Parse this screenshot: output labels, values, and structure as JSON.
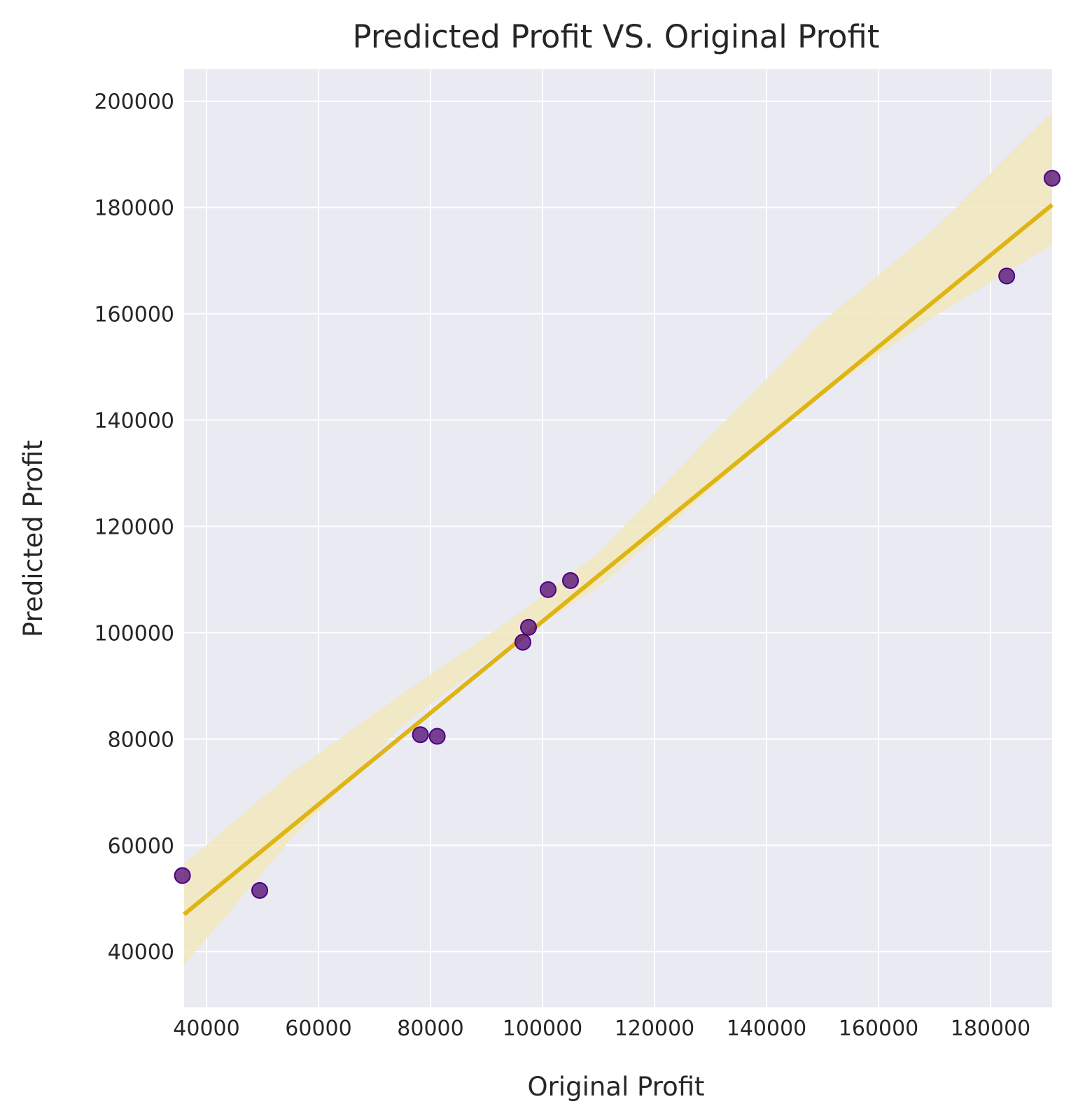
{
  "chart_data": {
    "type": "scatter",
    "title": "Predicted Profit VS. Original Profit",
    "xlabel": "Original Profit",
    "ylabel": "Predicted Profit",
    "xlim": [
      36000,
      191000
    ],
    "ylim": [
      29500,
      206000
    ],
    "xticks": [
      40000,
      60000,
      80000,
      100000,
      120000,
      140000,
      160000,
      180000
    ],
    "yticks": [
      40000,
      60000,
      80000,
      100000,
      120000,
      140000,
      160000,
      180000,
      200000
    ],
    "grid": true,
    "points": [
      {
        "x": 35700,
        "y": 54300
      },
      {
        "x": 49500,
        "y": 51500
      },
      {
        "x": 78200,
        "y": 80800
      },
      {
        "x": 81200,
        "y": 80500
      },
      {
        "x": 96500,
        "y": 98200
      },
      {
        "x": 97500,
        "y": 101000
      },
      {
        "x": 101000,
        "y": 108100
      },
      {
        "x": 105000,
        "y": 109800
      },
      {
        "x": 182900,
        "y": 167100
      },
      {
        "x": 191000,
        "y": 185500
      }
    ],
    "regression_line": {
      "x": [
        36000,
        191000
      ],
      "y": [
        47000,
        180500
      ]
    },
    "confidence_band": {
      "x": [
        36000,
        55000,
        75000,
        95000,
        110000,
        130000,
        150000,
        170000,
        191000
      ],
      "lower": [
        37500,
        61000,
        82500,
        98500,
        108500,
        127000,
        145000,
        159500,
        173000
      ],
      "upper": [
        56500,
        73500,
        88500,
        103000,
        115000,
        137000,
        158500,
        176000,
        198000
      ]
    },
    "colors": {
      "background": "#eaeaf2",
      "grid": "#ffffff",
      "point_fill": "#5b1a7a",
      "point_edge": "#4b0082",
      "line": "#dfb514",
      "band": "#f2e8be"
    }
  }
}
